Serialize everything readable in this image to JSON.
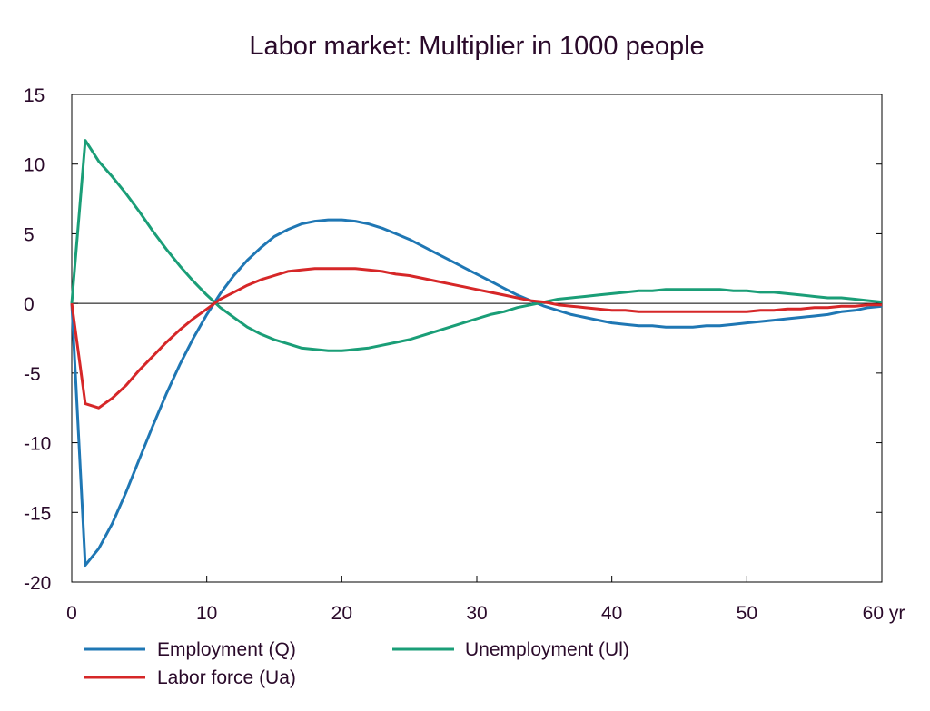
{
  "chart_data": {
    "type": "line",
    "title": "Labor market: Multiplier in 1000 people",
    "xlabel": "",
    "ylabel": "",
    "x_unit_label": "yr",
    "xlim": [
      0,
      60
    ],
    "ylim": [
      -20,
      15
    ],
    "x_ticks": [
      0,
      10,
      20,
      30,
      40,
      50,
      60
    ],
    "x_tick_labels": [
      "0",
      "10",
      "20",
      "30",
      "40",
      "50",
      "60 yr"
    ],
    "y_ticks": [
      15,
      10,
      5,
      0,
      -5,
      -10,
      -15,
      -20
    ],
    "y_tick_labels": [
      "15",
      "10",
      "5",
      "0",
      "-5",
      "-10",
      "-15",
      "-20"
    ],
    "grid": false,
    "zero_line": true,
    "legend_position": "bottom",
    "x": [
      0,
      1,
      2,
      3,
      4,
      5,
      6,
      7,
      8,
      9,
      10,
      11,
      12,
      13,
      14,
      15,
      16,
      17,
      18,
      19,
      20,
      21,
      22,
      23,
      24,
      25,
      26,
      27,
      28,
      29,
      30,
      31,
      32,
      33,
      34,
      35,
      36,
      37,
      38,
      39,
      40,
      41,
      42,
      43,
      44,
      45,
      46,
      47,
      48,
      49,
      50,
      51,
      52,
      53,
      54,
      55,
      56,
      57,
      58,
      59,
      60
    ],
    "series": [
      {
        "name": "Employment (Q)",
        "color": "#1f77b4",
        "values": [
          0,
          -18.8,
          -17.6,
          -15.8,
          -13.6,
          -11.2,
          -8.8,
          -6.5,
          -4.4,
          -2.5,
          -0.8,
          0.7,
          2.0,
          3.1,
          4.0,
          4.8,
          5.3,
          5.7,
          5.9,
          6.0,
          6.0,
          5.9,
          5.7,
          5.4,
          5.0,
          4.6,
          4.1,
          3.6,
          3.1,
          2.6,
          2.1,
          1.6,
          1.1,
          0.6,
          0.2,
          -0.2,
          -0.5,
          -0.8,
          -1.0,
          -1.2,
          -1.4,
          -1.5,
          -1.6,
          -1.6,
          -1.7,
          -1.7,
          -1.7,
          -1.6,
          -1.6,
          -1.5,
          -1.4,
          -1.3,
          -1.2,
          -1.1,
          -1.0,
          -0.9,
          -0.8,
          -0.6,
          -0.5,
          -0.3,
          -0.2
        ]
      },
      {
        "name": "Unemployment (Ul)",
        "color": "#1a9e77",
        "values": [
          0,
          11.7,
          10.2,
          9.1,
          7.9,
          6.6,
          5.2,
          3.9,
          2.7,
          1.6,
          0.6,
          -0.3,
          -1.0,
          -1.7,
          -2.2,
          -2.6,
          -2.9,
          -3.2,
          -3.3,
          -3.4,
          -3.4,
          -3.3,
          -3.2,
          -3.0,
          -2.8,
          -2.6,
          -2.3,
          -2.0,
          -1.7,
          -1.4,
          -1.1,
          -0.8,
          -0.6,
          -0.3,
          -0.1,
          0.1,
          0.3,
          0.4,
          0.5,
          0.6,
          0.7,
          0.8,
          0.9,
          0.9,
          1.0,
          1.0,
          1.0,
          1.0,
          1.0,
          0.9,
          0.9,
          0.8,
          0.8,
          0.7,
          0.6,
          0.5,
          0.4,
          0.4,
          0.3,
          0.2,
          0.1
        ]
      },
      {
        "name": "Labor force (Ua)",
        "color": "#d62728",
        "values": [
          0,
          -7.2,
          -7.5,
          -6.8,
          -5.9,
          -4.8,
          -3.8,
          -2.8,
          -1.9,
          -1.1,
          -0.4,
          0.3,
          0.8,
          1.3,
          1.7,
          2.0,
          2.3,
          2.4,
          2.5,
          2.5,
          2.5,
          2.5,
          2.4,
          2.3,
          2.1,
          2.0,
          1.8,
          1.6,
          1.4,
          1.2,
          1.0,
          0.8,
          0.6,
          0.4,
          0.2,
          0.1,
          -0.1,
          -0.2,
          -0.3,
          -0.4,
          -0.5,
          -0.5,
          -0.6,
          -0.6,
          -0.6,
          -0.6,
          -0.6,
          -0.6,
          -0.6,
          -0.6,
          -0.6,
          -0.5,
          -0.5,
          -0.4,
          -0.4,
          -0.3,
          -0.3,
          -0.2,
          -0.2,
          -0.1,
          -0.1
        ]
      }
    ],
    "legend_entries": [
      {
        "label": "Employment (Q)",
        "color": "#1f77b4"
      },
      {
        "label": "Unemployment (Ul)",
        "color": "#1a9e77"
      },
      {
        "label": "Labor force (Ua)",
        "color": "#d62728"
      }
    ]
  }
}
